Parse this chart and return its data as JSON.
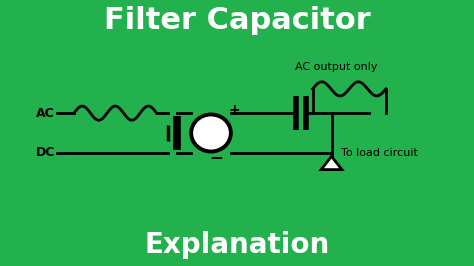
{
  "background_color": "#22b14c",
  "title": "Filter Capacitor",
  "subtitle": "Explanation",
  "title_color": "white",
  "subtitle_color": "white",
  "title_fontsize": 22,
  "subtitle_fontsize": 20,
  "circuit_color": "black",
  "ac_label": "AC",
  "dc_label": "DC",
  "ac_output_label": "AC output only",
  "load_label": "To load circuit",
  "plus_label": "+",
  "minus_label": "−"
}
